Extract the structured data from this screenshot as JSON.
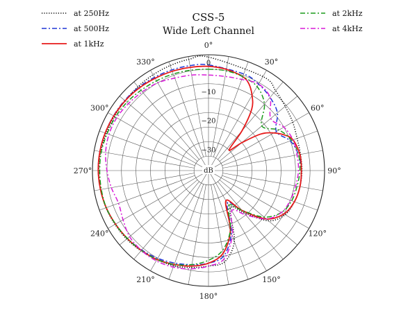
{
  "chart_data": {
    "type": "polar-line",
    "title": "CSS-5",
    "subtitle": "Wide Left Channel",
    "radial_unit": "dB",
    "radial_range": [
      -40,
      0
    ],
    "radial_rings_db": [
      0,
      -5,
      -10,
      -15,
      -20,
      -25,
      -30,
      -35,
      -40
    ],
    "radial_labels": [
      {
        "value": 0,
        "text": "0"
      },
      {
        "value": -10,
        "text": "−10"
      },
      {
        "value": -20,
        "text": "−20"
      },
      {
        "value": -30,
        "text": "−30"
      }
    ],
    "angle_labels": [
      "0°",
      "30°",
      "60°",
      "90°",
      "120°",
      "150°",
      "180°",
      "210°",
      "240°",
      "270°",
      "300°",
      "330°"
    ],
    "angle_label_values": [
      0,
      30,
      60,
      90,
      120,
      150,
      180,
      210,
      240,
      270,
      300,
      330
    ],
    "grid": true,
    "angular_grid_step_deg": 10,
    "legend_placement": "top-left and top-right",
    "series": [
      {
        "name": "at 250Hz",
        "color": "#000000",
        "dash": "dotted",
        "angles": [
          0,
          30,
          40,
          50,
          60,
          70,
          80,
          90,
          100,
          110,
          120,
          130,
          140,
          150,
          160,
          170,
          180,
          190,
          200,
          210,
          220,
          230,
          240,
          250,
          260,
          270,
          280,
          290,
          300,
          310,
          320,
          330,
          340,
          350
        ],
        "db": [
          -0.8,
          -2.5,
          -4,
          -5.5,
          -6.5,
          -7.5,
          -7.8,
          -7.8,
          -8,
          -8.5,
          -9.5,
          -13,
          -21,
          -25,
          -14,
          -8,
          -7,
          -6,
          -5,
          -4.5,
          -3.8,
          -3.2,
          -2.8,
          -2.4,
          -2.3,
          -2.2,
          -2.3,
          -2.5,
          -2.6,
          -2.5,
          -2.2,
          -1.8,
          -1.4,
          -1
        ]
      },
      {
        "name": "at 500Hz",
        "color": "#1f35d6",
        "dash": "dashdot",
        "angles": [
          0,
          20,
          30,
          40,
          50,
          60,
          70,
          80,
          90,
          100,
          110,
          120,
          130,
          140,
          150,
          160,
          170,
          180,
          190,
          200,
          210,
          220,
          230,
          240,
          250,
          260,
          270,
          280,
          290,
          300,
          310,
          320,
          330,
          340,
          350
        ],
        "db": [
          -3.5,
          -4.5,
          -5.5,
          -7,
          -9,
          -13,
          -10,
          -8.5,
          -8,
          -8,
          -8.5,
          -10,
          -14,
          -22,
          -27,
          -17,
          -10,
          -8,
          -7,
          -6,
          -5,
          -4.2,
          -3.5,
          -3,
          -2.5,
          -2.2,
          -2,
          -2,
          -2.1,
          -2.2,
          -2.3,
          -2.5,
          -2.8,
          -3,
          -3.2
        ]
      },
      {
        "name": "at 1kHz",
        "color": "#e61919",
        "dash": "solid",
        "angles": [
          0,
          10,
          20,
          25,
          30,
          35,
          40,
          45,
          50,
          55,
          60,
          65,
          70,
          80,
          90,
          100,
          110,
          120,
          130,
          140,
          150,
          160,
          170,
          180,
          190,
          200,
          210,
          220,
          230,
          240,
          250,
          260,
          270,
          280,
          290,
          300,
          310,
          320,
          330,
          340,
          350
        ],
        "db": [
          -4,
          -4.5,
          -5.5,
          -7,
          -10,
          -14,
          -22,
          -30,
          -25,
          -18,
          -14,
          -11,
          -9,
          -8,
          -8,
          -8,
          -8.5,
          -10,
          -14,
          -22,
          -28,
          -18,
          -11,
          -8,
          -6.5,
          -5.5,
          -4.5,
          -4,
          -3.5,
          -3,
          -2.5,
          -2.2,
          -2,
          -2,
          -2.1,
          -2.3,
          -2.5,
          -2.8,
          -3.2,
          -3.5,
          -3.8
        ]
      },
      {
        "name": "at 2kHz",
        "color": "#1a9a1a",
        "dash": "dashdot",
        "angles": [
          0,
          10,
          20,
          30,
          40,
          50,
          60,
          70,
          80,
          90,
          100,
          110,
          120,
          130,
          140,
          150,
          160,
          170,
          180,
          190,
          200,
          210,
          220,
          230,
          240,
          250,
          260,
          270,
          280,
          290,
          300,
          310,
          320,
          330,
          340,
          350
        ],
        "db": [
          -5,
          -5,
          -5.5,
          -6.5,
          -10,
          -16,
          -12,
          -9.5,
          -8.5,
          -8.5,
          -9,
          -9.5,
          -11,
          -15,
          -22,
          -26,
          -18,
          -12,
          -9,
          -7,
          -5.5,
          -4.5,
          -4,
          -3.5,
          -3,
          -2.5,
          -2.5,
          -2.5,
          -2.5,
          -2.8,
          -3,
          -3.3,
          -3.8,
          -4.2,
          -4.5,
          -4.8
        ]
      },
      {
        "name": "at 4kHz",
        "color": "#d81ad8",
        "dash": "dashdot",
        "angles": [
          0,
          10,
          20,
          30,
          40,
          50,
          60,
          70,
          80,
          90,
          100,
          110,
          120,
          130,
          140,
          150,
          160,
          170,
          180,
          190,
          200,
          210,
          220,
          230,
          240,
          250,
          260,
          270,
          280,
          290,
          300,
          310,
          320,
          330,
          340,
          350
        ],
        "db": [
          -7,
          -7,
          -6.5,
          -5.5,
          -7,
          -12,
          -10,
          -9,
          -9,
          -9,
          -9.5,
          -10,
          -11,
          -14,
          -20,
          -24,
          -16,
          -9,
          -7,
          -5.5,
          -4.5,
          -4,
          -4,
          -4.5,
          -6,
          -7,
          -6,
          -5,
          -4,
          -3.5,
          -3.5,
          -4,
          -4.5,
          -5,
          -6,
          -6.5
        ]
      }
    ]
  }
}
